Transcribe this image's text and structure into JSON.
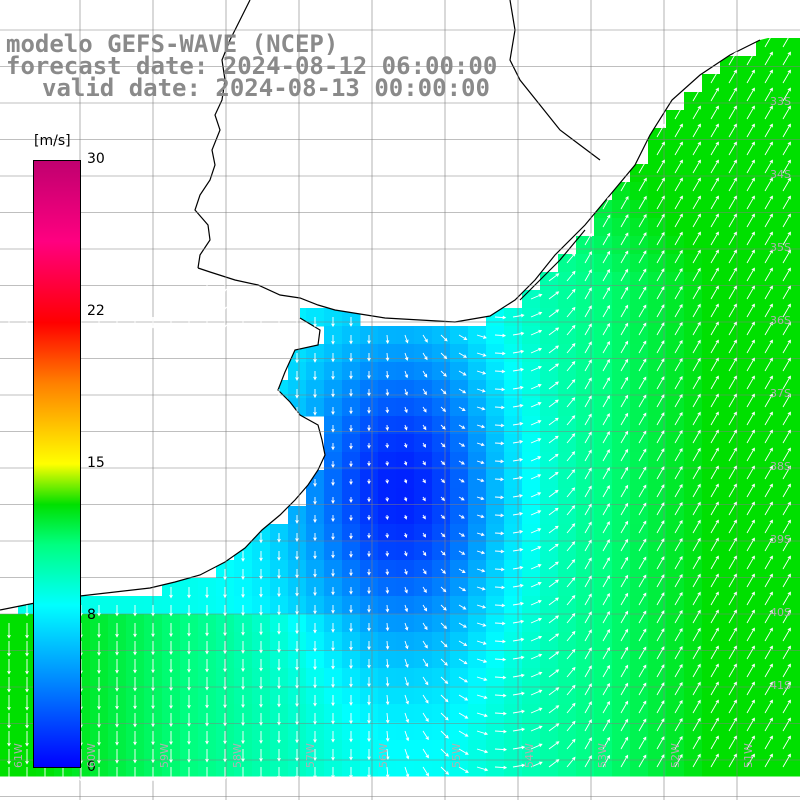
{
  "title": {
    "line1": "modelo GEFS-WAVE (NCEP)",
    "line2": "forecast date: 2024-08-12 06:00:00",
    "line3": "valid date: 2024-08-13 00:00:00"
  },
  "colorbar": {
    "unit": "[m/s]",
    "ticks": [
      "30",
      "22",
      "15",
      "8",
      "0"
    ],
    "min": 0,
    "max": 30,
    "stops": [
      {
        "value": 0,
        "color": "#0000ff"
      },
      {
        "value": 4,
        "color": "#0080ff"
      },
      {
        "value": 8,
        "color": "#00ffff"
      },
      {
        "value": 11,
        "color": "#00ff80"
      },
      {
        "value": 13,
        "color": "#00e000"
      },
      {
        "value": 15,
        "color": "#ffff00"
      },
      {
        "value": 19,
        "color": "#ff8000"
      },
      {
        "value": 22,
        "color": "#ff0000"
      },
      {
        "value": 26,
        "color": "#ff0080"
      },
      {
        "value": 30,
        "color": "#c0006f"
      }
    ]
  },
  "grid": {
    "lat_labels": [
      "33S",
      "34S",
      "35S",
      "36S",
      "37S",
      "38S",
      "39S",
      "40S",
      "41S"
    ],
    "lon_labels": [
      "61W",
      "60W",
      "59W",
      "58W",
      "57W",
      "56W",
      "55W",
      "54W",
      "53W",
      "52W",
      "51W"
    ]
  },
  "colors": {
    "land": "#ffffff",
    "coastline": "#000000",
    "grid": "#808080",
    "arrows": "#ffffff",
    "title": "#8a8a8a"
  }
}
